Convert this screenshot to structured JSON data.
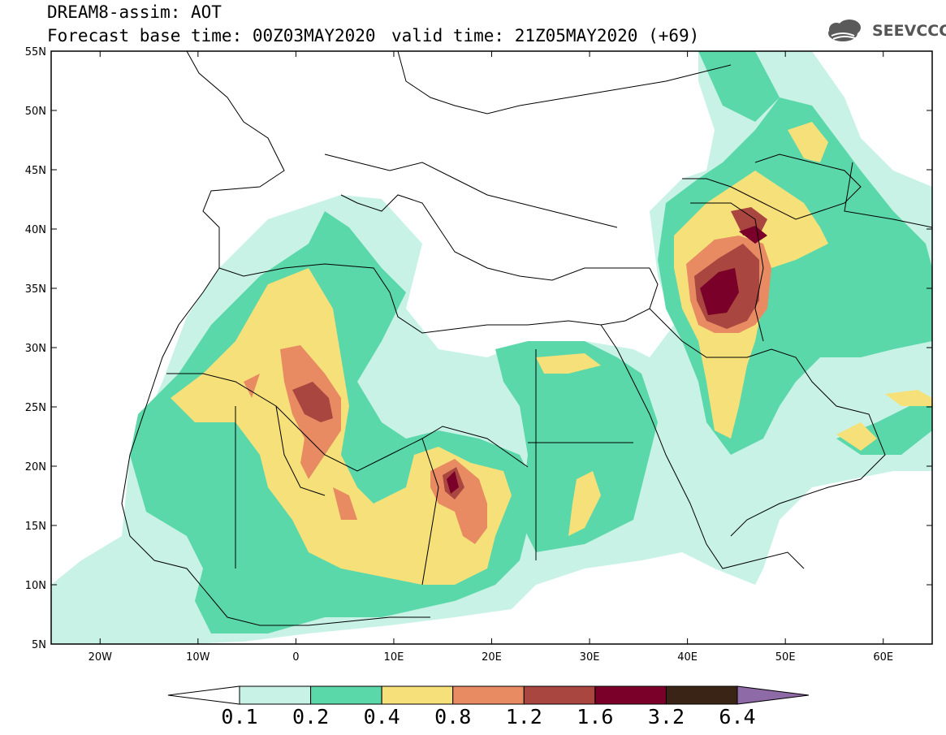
{
  "title": {
    "line1": "DREAM8-assim: AOT",
    "base_time": "Forecast base time: 00Z03MAY2020",
    "valid_time": "valid time: 21Z05MAY2020 (+69)"
  },
  "logo": {
    "text": "SEEVCCC",
    "icon": "cloud-logo-icon"
  },
  "map": {
    "lon_range": [
      -25,
      65
    ],
    "lat_range": [
      5,
      55
    ],
    "lon_ticks": [
      {
        "value": -20,
        "label": "20W"
      },
      {
        "value": -10,
        "label": "10W"
      },
      {
        "value": 0,
        "label": "0"
      },
      {
        "value": 10,
        "label": "10E"
      },
      {
        "value": 20,
        "label": "20E"
      },
      {
        "value": 30,
        "label": "30E"
      },
      {
        "value": 40,
        "label": "40E"
      },
      {
        "value": 50,
        "label": "50E"
      },
      {
        "value": 60,
        "label": "60E"
      }
    ],
    "lat_ticks": [
      {
        "value": 55,
        "label": "55N"
      },
      {
        "value": 50,
        "label": "50N"
      },
      {
        "value": 45,
        "label": "45N"
      },
      {
        "value": 40,
        "label": "40N"
      },
      {
        "value": 35,
        "label": "35N"
      },
      {
        "value": 30,
        "label": "30N"
      },
      {
        "value": 25,
        "label": "25N"
      },
      {
        "value": 20,
        "label": "20N"
      },
      {
        "value": 15,
        "label": "15N"
      },
      {
        "value": 10,
        "label": "10N"
      },
      {
        "value": 5,
        "label": "5N"
      }
    ]
  },
  "colorbar": {
    "levels": [
      "0.1",
      "0.2",
      "0.4",
      "0.8",
      "1.2",
      "1.6",
      "3.2",
      "6.4"
    ],
    "colors": [
      "#ffffff",
      "#c8f2e6",
      "#5ad8aa",
      "#f6e07a",
      "#e88b63",
      "#a9463f",
      "#7a0029",
      "#3a2415",
      "#8e6aa6"
    ]
  }
}
